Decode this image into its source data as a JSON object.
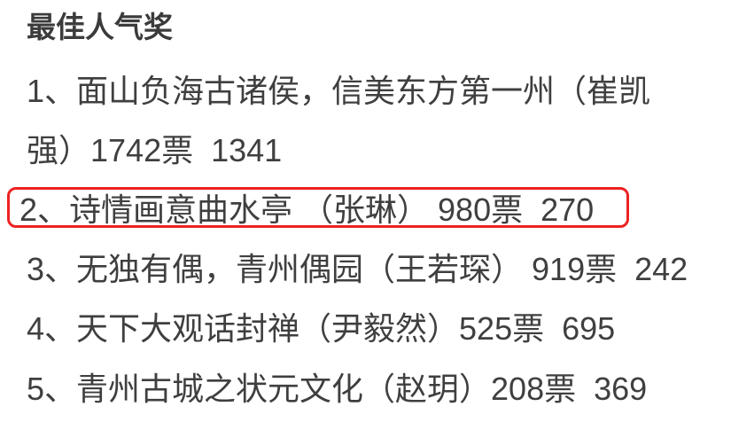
{
  "theme": {
    "background": "#ffffff",
    "text_color": "#3f3f3f",
    "title_color": "#3b3b3b",
    "highlight_border": "#ee2222"
  },
  "title": "最佳人气奖",
  "list": {
    "lines": [
      {
        "text": "1、面山负海古诸侯，信美东方第一州（崔凯",
        "highlighted": false
      },
      {
        "text": "强）1742票  1341",
        "highlighted": false
      },
      {
        "text": "2、诗情画意曲水亭 （张琳） 980票  270",
        "highlighted": true
      },
      {
        "text": "3、无独有偶，青州偶园（王若琛） 919票  242",
        "highlighted": false
      },
      {
        "text": "4、天下大观话封禅（尹毅然）525票  695",
        "highlighted": false
      },
      {
        "text": "5、青州古城之状元文化（赵玥）208票  369",
        "highlighted": false
      }
    ]
  },
  "records": [
    {
      "rank": "1",
      "entry": "面山负海古诸侯，信美东方第一州",
      "author": "崔凯强",
      "votes": "1742票",
      "second_number": "1341"
    },
    {
      "rank": "2",
      "entry": "诗情画意曲水亭",
      "author": "张琳",
      "votes": "980票",
      "second_number": "270"
    },
    {
      "rank": "3",
      "entry": "无独有偶，青州偶园",
      "author": "王若琛",
      "votes": "919票",
      "second_number": "242"
    },
    {
      "rank": "4",
      "entry": "天下大观话封禅",
      "author": "尹毅然",
      "votes": "525票",
      "second_number": "695"
    },
    {
      "rank": "5",
      "entry": "青州古城之状元文化",
      "author": "赵玥",
      "votes": "208票",
      "second_number": "369"
    }
  ],
  "annotation": {
    "type": "red-rounded-box",
    "marks_rank": "2"
  }
}
